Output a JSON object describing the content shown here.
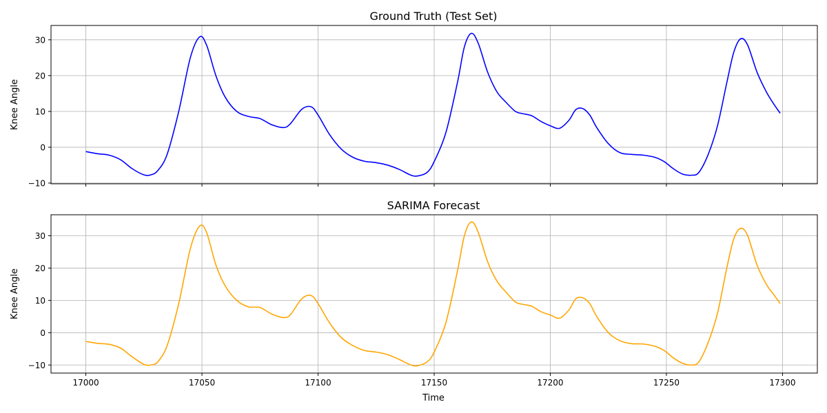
{
  "figure": {
    "xlabel": "Time"
  },
  "chart_data": [
    {
      "type": "line",
      "title": "Ground Truth (Test Set)",
      "xlabel": "",
      "ylabel": "Knee Angle",
      "xlim": [
        16985,
        17315
      ],
      "ylim": [
        -10.2,
        34
      ],
      "xticks": [
        17000,
        17050,
        17100,
        17150,
        17200,
        17250,
        17300
      ],
      "yticks": [
        -10,
        0,
        10,
        20,
        30
      ],
      "grid": true,
      "series": [
        {
          "color": "#0000ff",
          "x": [
            17000,
            17005,
            17010,
            17015,
            17020,
            17025,
            17028,
            17031,
            17035,
            17040,
            17045,
            17049,
            17052,
            17056,
            17060,
            17065,
            17070,
            17075,
            17080,
            17085,
            17088,
            17093,
            17097,
            17100,
            17105,
            17110,
            17115,
            17120,
            17125,
            17130,
            17135,
            17140,
            17143,
            17147,
            17150,
            17155,
            17160,
            17163,
            17166,
            17169,
            17173,
            17177,
            17181,
            17185,
            17188,
            17192,
            17196,
            17200,
            17204,
            17208,
            17211,
            17214,
            17217,
            17220,
            17225,
            17230,
            17235,
            17240,
            17245,
            17249,
            17253,
            17257,
            17261,
            17264,
            17268,
            17272,
            17276,
            17279,
            17282,
            17285,
            17289,
            17293,
            17296,
            17299
          ],
          "y": [
            -1.2,
            -1.8,
            -2.2,
            -3.5,
            -6.0,
            -7.7,
            -7.7,
            -6.5,
            -2.0,
            10.0,
            25.0,
            30.8,
            28.5,
            20.0,
            14.0,
            10.0,
            8.6,
            8.0,
            6.3,
            5.5,
            6.5,
            10.6,
            11.3,
            9.0,
            3.5,
            -0.5,
            -2.8,
            -3.9,
            -4.3,
            -5.0,
            -6.2,
            -7.8,
            -8.0,
            -7.0,
            -4.0,
            4.0,
            18.0,
            28.0,
            31.8,
            29.0,
            21.0,
            15.5,
            12.5,
            10.0,
            9.4,
            8.8,
            7.2,
            6.0,
            5.3,
            7.5,
            10.5,
            10.8,
            9.0,
            5.5,
            1.0,
            -1.5,
            -2.0,
            -2.2,
            -2.8,
            -4.0,
            -6.0,
            -7.5,
            -7.8,
            -7.0,
            -2.0,
            6.0,
            18.0,
            26.5,
            30.3,
            28.5,
            21.0,
            15.5,
            12.3,
            9.5
          ]
        }
      ]
    },
    {
      "type": "line",
      "title": "SARIMA Forecast",
      "xlabel": "Time",
      "ylabel": "Knee Angle",
      "xlim": [
        16985,
        17315
      ],
      "ylim": [
        -12.5,
        36.5
      ],
      "xticks": [
        17000,
        17050,
        17100,
        17150,
        17200,
        17250,
        17300
      ],
      "yticks": [
        -10,
        0,
        10,
        20,
        30
      ],
      "grid": true,
      "series": [
        {
          "color": "#ffa500",
          "x": [
            17000,
            17005,
            17010,
            17015,
            17020,
            17025,
            17028,
            17031,
            17035,
            17040,
            17045,
            17049,
            17052,
            17056,
            17060,
            17065,
            17070,
            17075,
            17080,
            17085,
            17088,
            17093,
            17097,
            17100,
            17105,
            17110,
            17115,
            17120,
            17125,
            17130,
            17135,
            17140,
            17143,
            17147,
            17150,
            17155,
            17160,
            17163,
            17166,
            17169,
            17173,
            17177,
            17181,
            17185,
            17188,
            17192,
            17196,
            17200,
            17204,
            17208,
            17211,
            17214,
            17217,
            17220,
            17225,
            17230,
            17235,
            17240,
            17245,
            17249,
            17253,
            17257,
            17261,
            17264,
            17268,
            17272,
            17276,
            17279,
            17282,
            17285,
            17289,
            17293,
            17296,
            17299
          ],
          "y": [
            -2.7,
            -3.3,
            -3.6,
            -4.8,
            -7.5,
            -9.8,
            -10.0,
            -9.0,
            -4.0,
            9.0,
            26.0,
            33.0,
            31.0,
            21.0,
            14.5,
            10.0,
            8.0,
            7.8,
            5.8,
            4.7,
            5.5,
            10.5,
            11.5,
            9.0,
            3.0,
            -1.5,
            -4.0,
            -5.5,
            -6.0,
            -6.8,
            -8.3,
            -10.0,
            -10.2,
            -9.0,
            -6.0,
            3.0,
            19.0,
            30.0,
            34.3,
            31.0,
            22.0,
            16.0,
            12.5,
            9.5,
            8.8,
            8.2,
            6.5,
            5.5,
            4.5,
            7.0,
            10.5,
            10.8,
            9.0,
            5.0,
            0.0,
            -2.5,
            -3.4,
            -3.5,
            -4.2,
            -5.5,
            -7.8,
            -9.5,
            -10.0,
            -9.0,
            -3.0,
            6.0,
            20.0,
            29.0,
            32.3,
            30.0,
            21.0,
            15.0,
            12.0,
            9.0
          ]
        }
      ]
    }
  ]
}
